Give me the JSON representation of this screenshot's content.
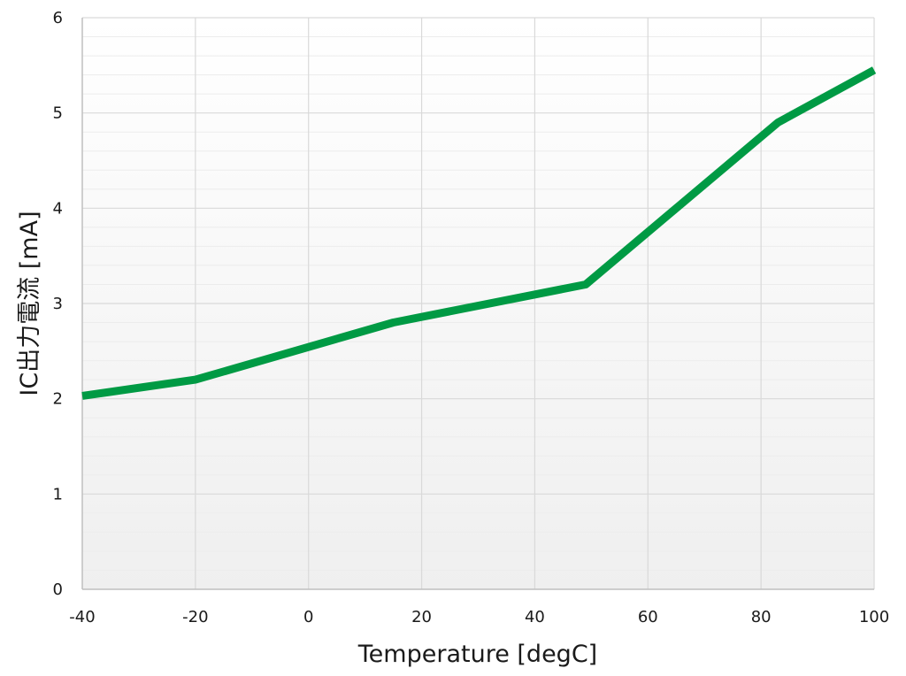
{
  "chart_data": {
    "type": "line",
    "title": "",
    "xlabel": "Temperature [degC]",
    "ylabel": "IC出力電流 [mA]",
    "xlim": [
      -40,
      100
    ],
    "ylim": [
      0,
      6
    ],
    "x_ticks": [
      "-40",
      "-20",
      "0",
      "20",
      "40",
      "60",
      "80",
      "100"
    ],
    "y_ticks": [
      "0",
      "1",
      "2",
      "3",
      "4",
      "5",
      "6"
    ],
    "grid": true,
    "legend": "none",
    "series": [
      {
        "color": "#009a44",
        "x": [
          -40,
          -20,
          15,
          49,
          83,
          100
        ],
        "y": [
          2.03,
          2.2,
          2.8,
          3.2,
          4.9,
          5.45
        ]
      }
    ]
  }
}
